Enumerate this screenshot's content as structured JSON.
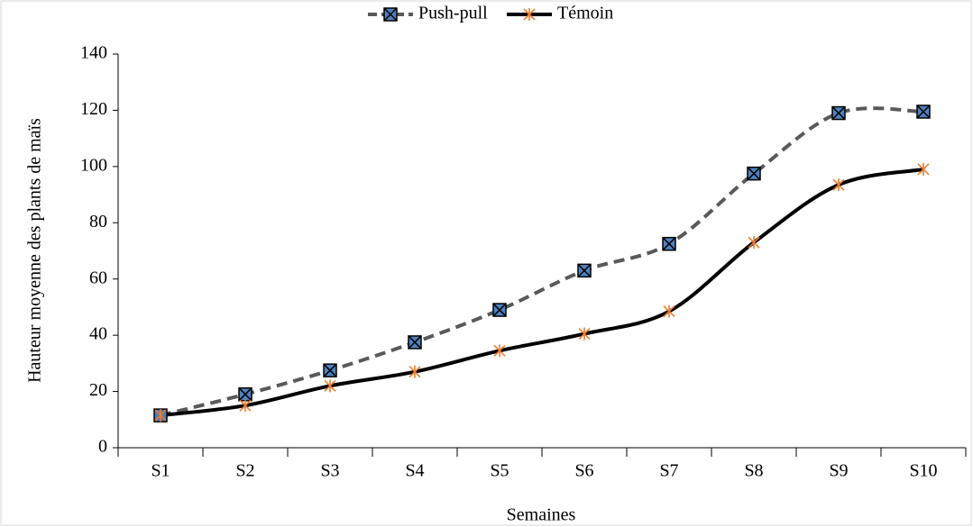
{
  "chart_data": {
    "type": "line",
    "categories": [
      "S1",
      "S2",
      "S3",
      "S4",
      "S5",
      "S6",
      "S7",
      "S8",
      "S9",
      "S10"
    ],
    "series": [
      {
        "name": "Push-pull",
        "color": "#595959",
        "marker_color": "#4f81bd",
        "dashed": true,
        "values": [
          11.5,
          19,
          27.5,
          37.5,
          49,
          63,
          72.5,
          97.5,
          119,
          119.5
        ]
      },
      {
        "name": "Témoin",
        "color": "#000000",
        "marker_color": "#ed7d31",
        "dashed": false,
        "values": [
          11.5,
          15,
          22,
          27,
          34.5,
          40.5,
          48.5,
          73,
          93.5,
          99
        ]
      }
    ],
    "xlabel": "Semaines",
    "ylabel": "Hauteur moyenne des plants de maïs",
    "ylim": [
      0,
      140
    ],
    "yticks": [
      0,
      20,
      40,
      60,
      80,
      100,
      120,
      140
    ],
    "legend": "top",
    "grid": false
  }
}
